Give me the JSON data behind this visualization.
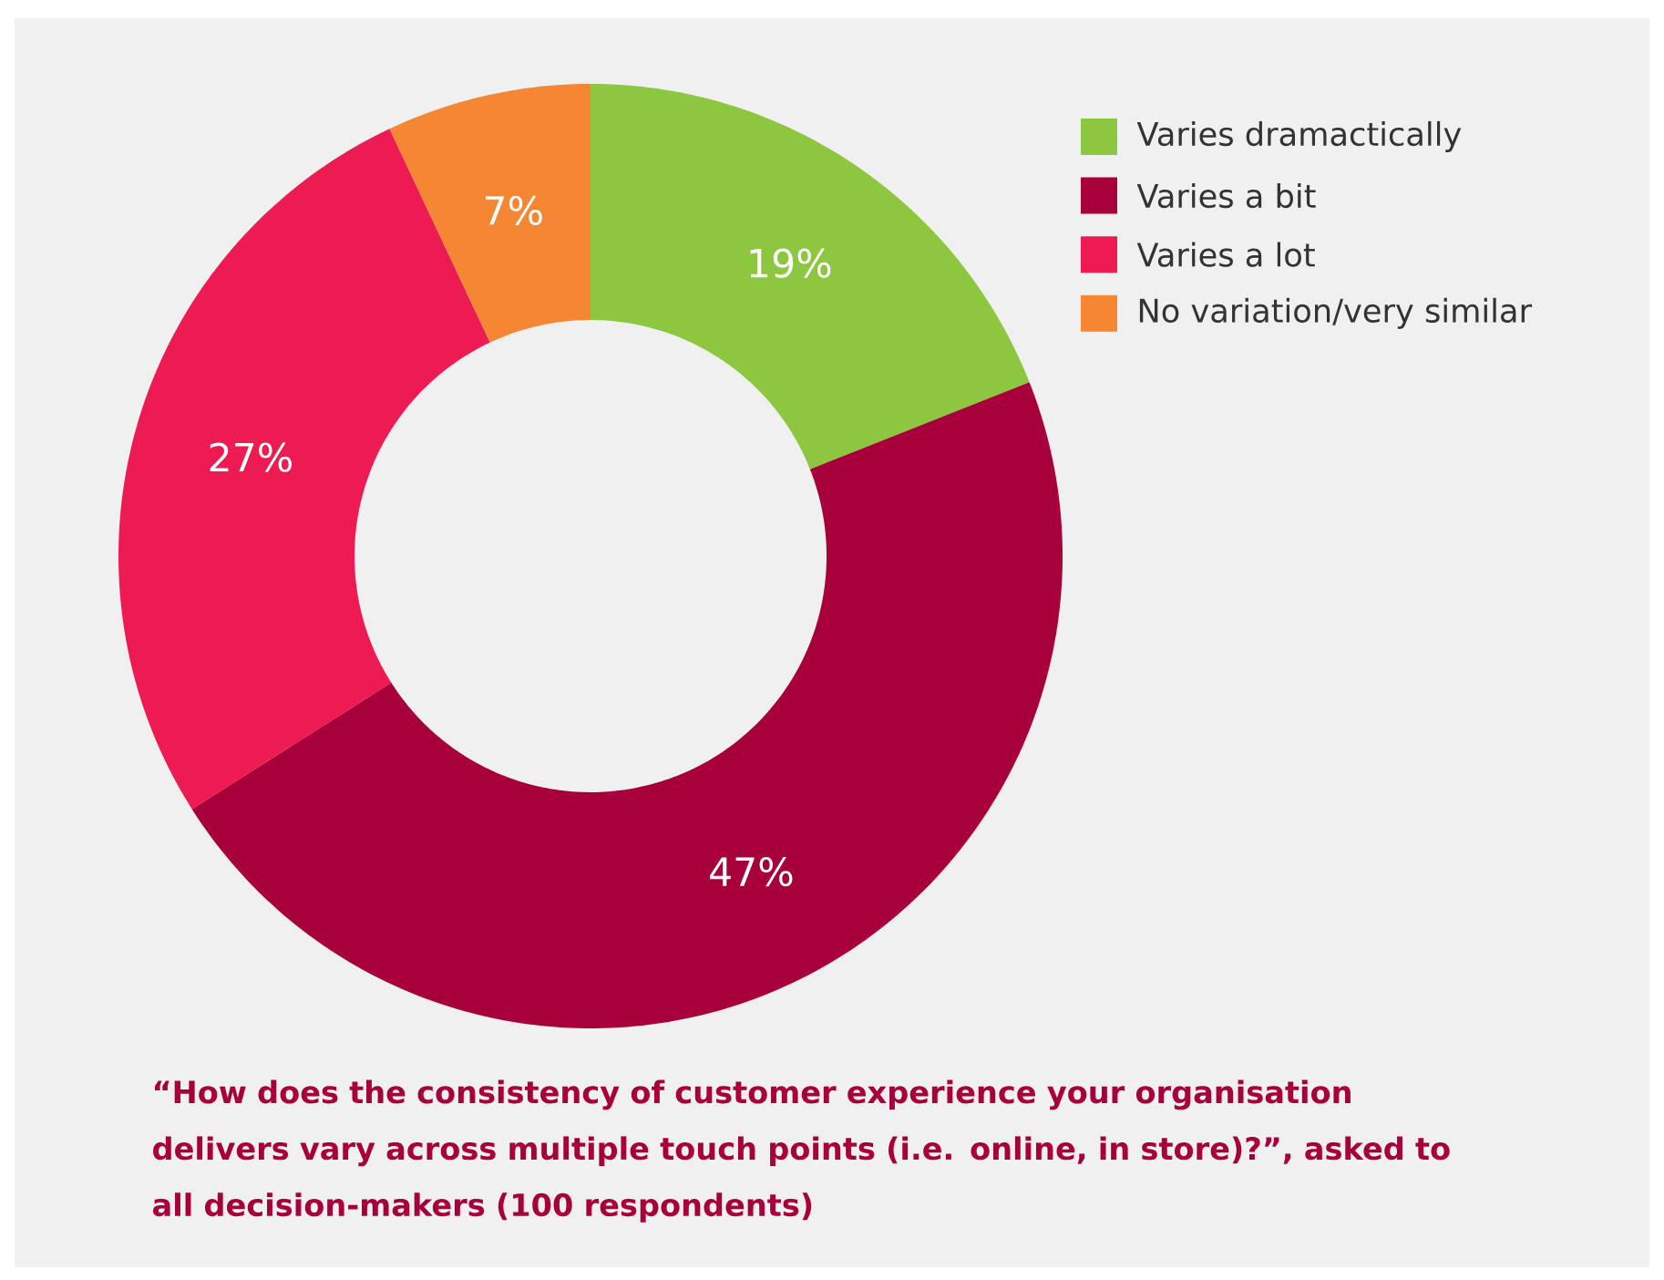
{
  "chart_data": {
    "type": "donut",
    "categories": [
      "Varies dramactically",
      "Varies a bit",
      "Varies a lot",
      "No variation/very similar"
    ],
    "values": [
      19,
      47,
      27,
      7
    ],
    "value_labels": [
      "19%",
      "47%",
      "27%",
      "7%"
    ],
    "colors": [
      "#8dc63f",
      "#a8003a",
      "#ee1a52",
      "#f58634"
    ],
    "legend": "top right",
    "annotations": [
      "“How does the consistency of customer experience your organisation delivers vary across multiple touch points (i.e. online, in store)?”, asked to all decision-makers (100 respondents)"
    ]
  }
}
